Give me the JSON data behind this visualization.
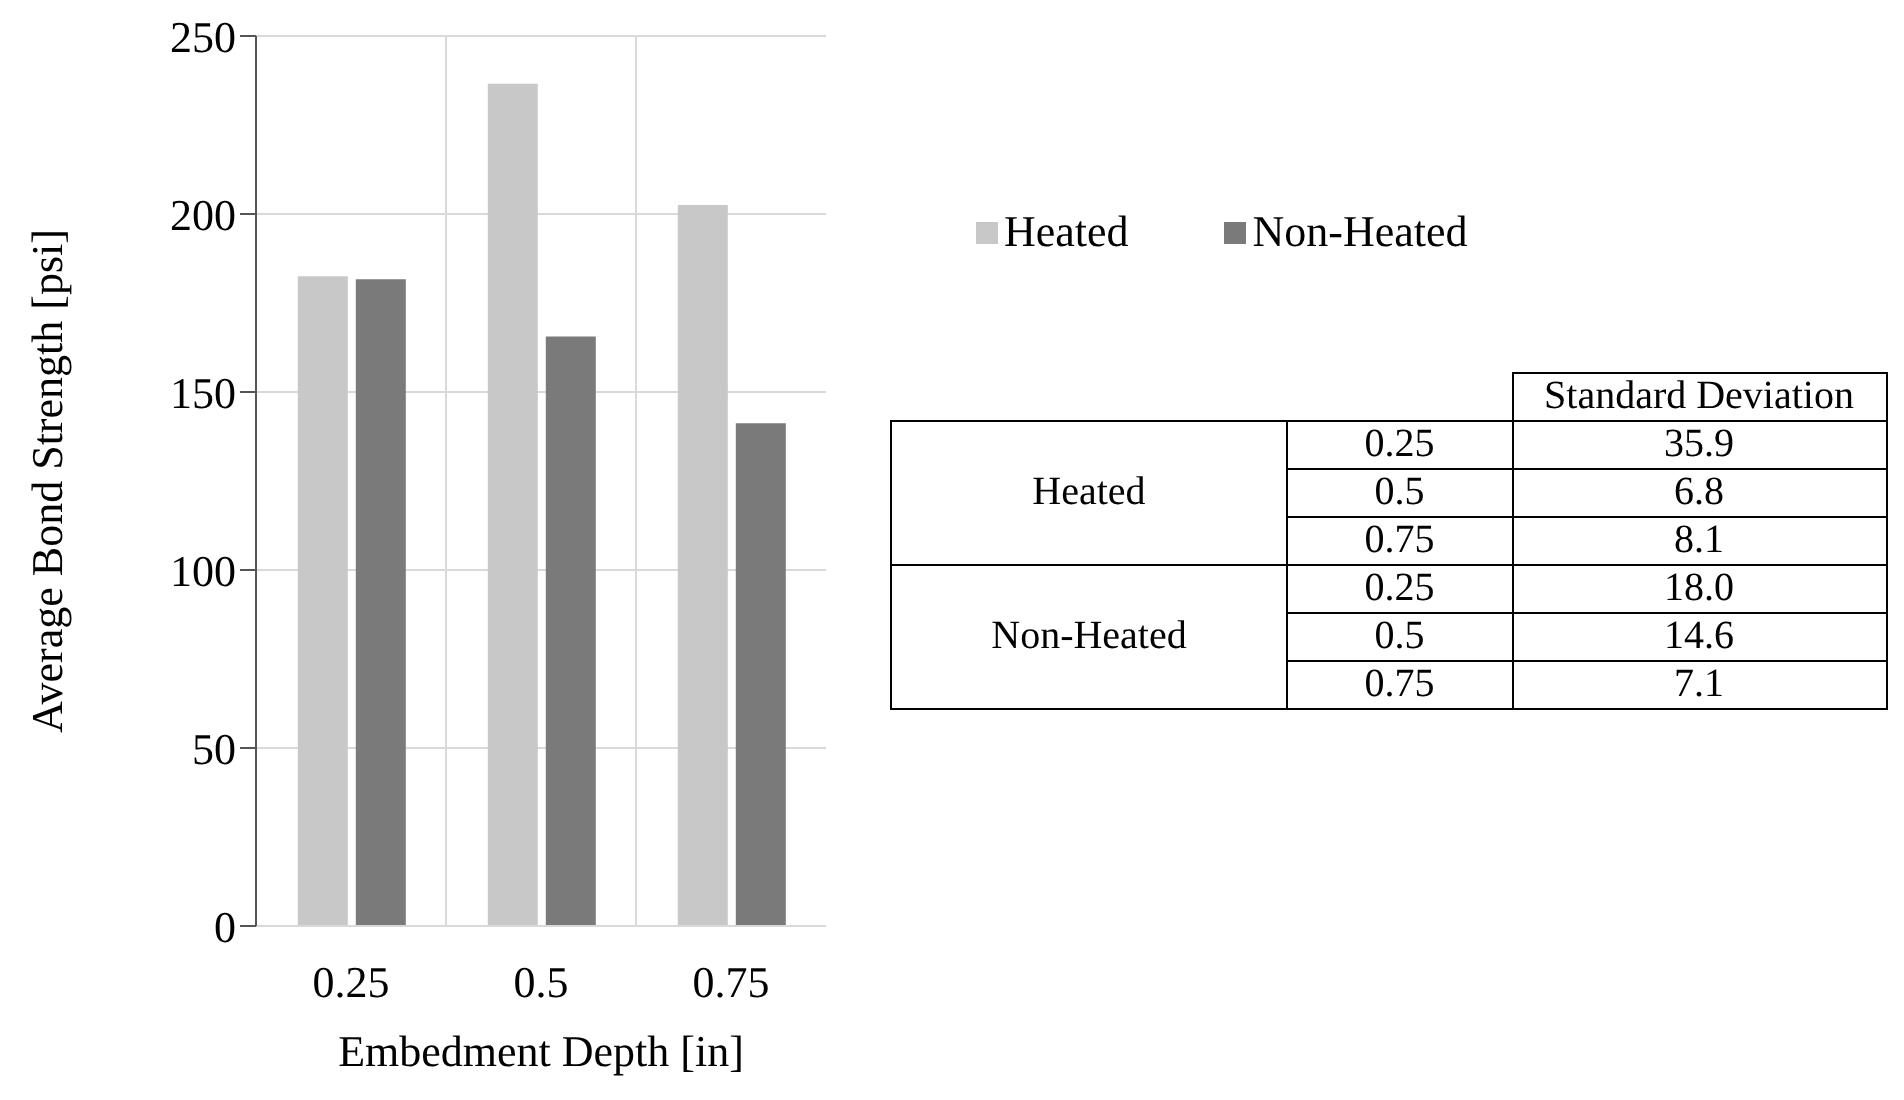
{
  "chart_data": {
    "type": "bar",
    "xlabel": "Embedment Depth [in]",
    "ylabel": "Average Bond Strength [psi]",
    "categories": [
      "0.25",
      "0.5",
      "0.75"
    ],
    "series": [
      {
        "name": "Heated",
        "color": "#c8c8c8",
        "values": [
          182.5,
          236.6,
          202.5
        ]
      },
      {
        "name": "Non-Heated",
        "color": "#7a7a7a",
        "values": [
          181.7,
          165.6,
          141.2
        ]
      }
    ],
    "ylim": [
      0,
      250
    ],
    "yticks": [
      0,
      50,
      100,
      150,
      200,
      250
    ],
    "grid": true,
    "legend": "right",
    "annotations": [
      "Standard Deviation",
      "Heated",
      "0.25",
      "35.9",
      "0.5",
      "6.8",
      "0.75",
      "8.1",
      "Non-Heated",
      "0.25",
      "18.0",
      "0.5",
      "14.6",
      "0.75",
      "7.1"
    ]
  }
}
